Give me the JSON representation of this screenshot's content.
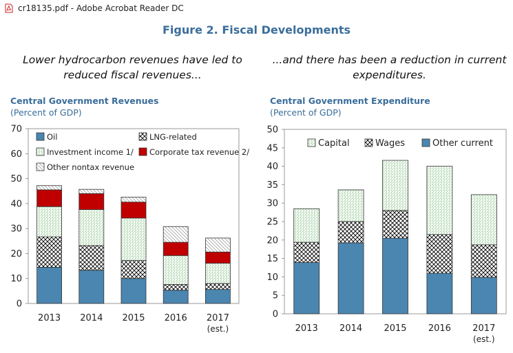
{
  "window": {
    "title": "cr18135.pdf - Adobe Acrobat Reader DC",
    "icon": "pdf-icon",
    "icon_color": "#c8211c"
  },
  "figure": {
    "title": "Figure 2. Fiscal Developments",
    "subtitle_left": [
      "Lower hydrocarbon revenues have led to",
      "reduced fiscal revenues..."
    ],
    "subtitle_right": [
      "...and there has been a reduction in current",
      "expenditures."
    ]
  },
  "chart_data": [
    {
      "type": "bar",
      "stacked": true,
      "title": "Central Government Revenues",
      "subtitle": "(Percent of GDP)",
      "categories": [
        "2013",
        "2014",
        "2015",
        "2016",
        "2017"
      ],
      "category_sublabels": [
        "",
        "",
        "",
        "",
        "(est.)"
      ],
      "ylim": [
        0,
        70
      ],
      "yticks": [
        0,
        10,
        20,
        30,
        40,
        50,
        60,
        70
      ],
      "grid": false,
      "legend_position": "top",
      "series": [
        {
          "name": "Oil",
          "values": [
            14.5,
            13.3,
            10.0,
            5.3,
            5.6
          ],
          "color": "#4a86b0",
          "pattern": "solid"
        },
        {
          "name": "LNG-related",
          "values": [
            12.2,
            9.9,
            7.2,
            2.3,
            2.4
          ],
          "color": "#000000",
          "pattern": "crosshatch"
        },
        {
          "name": "Investment income 1/",
          "values": [
            12.1,
            14.4,
            17.0,
            11.6,
            8.1
          ],
          "color": "#4aa34a",
          "pattern": "dots"
        },
        {
          "name": "Corporate tax revenue 2/",
          "values": [
            6.7,
            6.4,
            6.4,
            5.3,
            4.5
          ],
          "color": "#c00000",
          "pattern": "solid"
        },
        {
          "name": "Other nontax revenue",
          "values": [
            1.7,
            1.7,
            2.0,
            6.3,
            5.6
          ],
          "color": "#777777",
          "pattern": "hatch"
        }
      ]
    },
    {
      "type": "bar",
      "stacked": true,
      "title": "Central Government Expenditure",
      "subtitle": "(Percent of GDP)",
      "categories": [
        "2013",
        "2014",
        "2015",
        "2016",
        "2017"
      ],
      "category_sublabels": [
        "",
        "",
        "",
        "",
        "(est.)"
      ],
      "ylim": [
        0,
        50
      ],
      "yticks": [
        0,
        5,
        10,
        15,
        20,
        25,
        30,
        35,
        40,
        45,
        50
      ],
      "grid": false,
      "legend_position": "top",
      "series": [
        {
          "name": "Other current",
          "values": [
            13.9,
            19.2,
            20.5,
            11.0,
            9.9
          ],
          "color": "#4a86b0",
          "pattern": "solid"
        },
        {
          "name": "Wages",
          "values": [
            5.5,
            5.8,
            7.5,
            10.5,
            8.8
          ],
          "color": "#000000",
          "pattern": "crosshatch"
        },
        {
          "name": "Capital",
          "values": [
            9.1,
            8.6,
            13.6,
            18.5,
            13.6
          ],
          "color": "#4aa34a",
          "pattern": "dots"
        }
      ]
    }
  ]
}
